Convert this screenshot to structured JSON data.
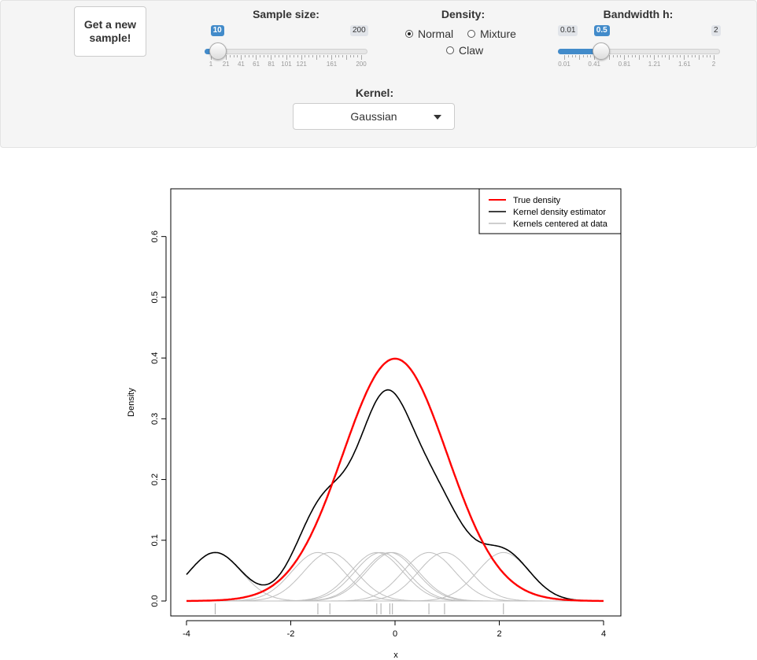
{
  "controls": {
    "new_sample_button": "Get a new\nsample!",
    "sample_size": {
      "label": "Sample size:",
      "min": 1,
      "max": 200,
      "value": 10,
      "min_label": "1",
      "max_label": "200",
      "value_label": "10",
      "tick_labels": [
        "1",
        "21",
        "41",
        "61",
        "81",
        "101",
        "121",
        "161",
        "200"
      ]
    },
    "density": {
      "label": "Density:",
      "options": [
        "Normal",
        "Mixture",
        "Claw"
      ],
      "selected": "Normal"
    },
    "bandwidth": {
      "label": "Bandwidth h:",
      "min": 0.01,
      "max": 2,
      "value": 0.5,
      "min_label": "0.01",
      "max_label": "2",
      "value_label": "0.5",
      "tick_labels": [
        "0.01",
        "0.41",
        "0.81",
        "1.21",
        "1.61",
        "2"
      ]
    },
    "kernel": {
      "label": "Kernel:",
      "selected": "Gaussian"
    }
  },
  "chart_data": {
    "type": "line",
    "xlabel": "x",
    "ylabel": "Density",
    "xlim": [
      -4,
      4
    ],
    "ylim": [
      0,
      0.68
    ],
    "x_ticks": [
      -4,
      -2,
      0,
      2,
      4
    ],
    "x_tick_labels": [
      "-4",
      "-2",
      "0",
      "2",
      "4"
    ],
    "y_ticks": [
      0,
      0.1,
      0.2,
      0.3,
      0.4,
      0.5,
      0.6
    ],
    "y_tick_labels": [
      "0.0",
      "0.1",
      "0.2",
      "0.3",
      "0.4",
      "0.5",
      "0.6"
    ],
    "legend_position": "top-right",
    "bandwidth": 0.5,
    "sample": [
      -3.45,
      -1.48,
      -1.25,
      -0.35,
      -0.27,
      -0.1,
      -0.05,
      0.65,
      0.95,
      2.08
    ],
    "series": [
      {
        "name": "True density",
        "color": "#ff0000",
        "kind": "normal_pdf",
        "mean": 0,
        "sd": 1
      },
      {
        "name": "Kernel density estimator",
        "color": "#000000",
        "kind": "kde"
      },
      {
        "name": "Kernels centered at data",
        "color": "#bebebe",
        "kind": "kernels"
      }
    ]
  }
}
